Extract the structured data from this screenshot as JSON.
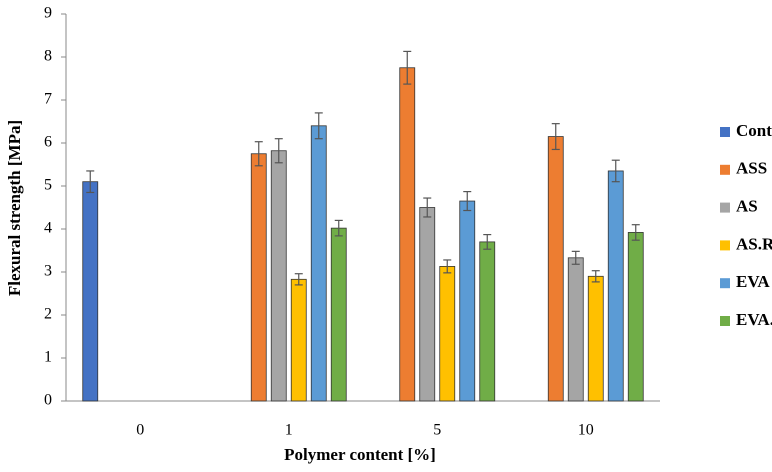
{
  "chart_data": {
    "type": "bar",
    "xlabel": "Polymer  content [%]",
    "ylabel": "Flexural strength [MPa]",
    "categories": [
      "0",
      "1",
      "5",
      "10"
    ],
    "series": [
      {
        "name": "Control",
        "color": "#4472c4",
        "values": [
          5.1,
          null,
          null,
          null
        ],
        "errors": [
          0.25,
          null,
          null,
          null
        ]
      },
      {
        "name": "ASS",
        "color": "#ed7d31",
        "values": [
          null,
          5.75,
          7.75,
          6.15
        ],
        "errors": [
          null,
          0.28,
          0.38,
          0.3
        ]
      },
      {
        "name": "AS",
        "color": "#a5a5a5",
        "values": [
          null,
          5.82,
          4.5,
          3.33
        ],
        "errors": [
          null,
          0.28,
          0.22,
          0.15
        ]
      },
      {
        "name": "AS.RDP",
        "color": "#ffc000",
        "values": [
          null,
          2.83,
          3.13,
          2.9
        ],
        "errors": [
          null,
          0.13,
          0.15,
          0.13
        ]
      },
      {
        "name": "EVA",
        "color": "#5b9bd5",
        "values": [
          null,
          6.4,
          4.65,
          5.35
        ],
        "errors": [
          null,
          0.3,
          0.22,
          0.25
        ]
      },
      {
        "name": "EVA.RDP",
        "color": "#70ad47",
        "values": [
          null,
          4.02,
          3.7,
          3.92
        ],
        "errors": [
          null,
          0.18,
          0.17,
          0.18
        ]
      }
    ],
    "ylim": [
      0,
      9
    ],
    "yticks": [
      0,
      1,
      2,
      3,
      4,
      5,
      6,
      7,
      8,
      9
    ],
    "grid": false,
    "legend": "right"
  }
}
